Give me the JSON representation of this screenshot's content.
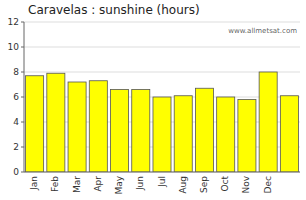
{
  "chart_data": {
    "type": "bar",
    "title": "Caravelas : sunshine (hours)",
    "categories": [
      "Jan",
      "Feb",
      "Mar",
      "Apr",
      "May",
      "Jun",
      "Jul",
      "Aug",
      "Sep",
      "Oct",
      "Nov",
      "Dec",
      null
    ],
    "values": [
      7.7,
      7.9,
      7.2,
      7.3,
      6.6,
      6.6,
      6.0,
      6.1,
      6.7,
      6.0,
      5.8,
      8.0,
      6.1
    ],
    "color": "#FFFF00",
    "ylim": [
      0,
      12
    ],
    "yticks": [
      0,
      2,
      4,
      6,
      8,
      10,
      12
    ],
    "grid": true,
    "annotations": [
      {
        "text": "www.allmetsat.com"
      }
    ]
  }
}
